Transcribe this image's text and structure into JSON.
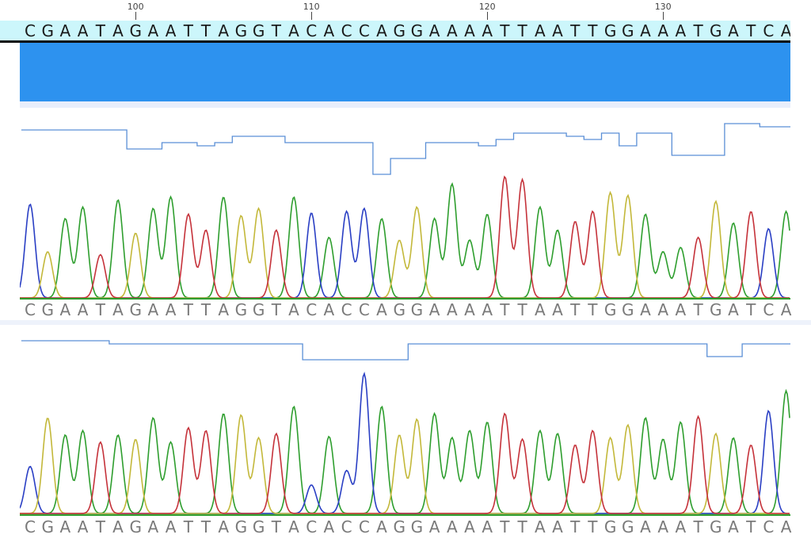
{
  "ruler": {
    "ticks": [
      {
        "label": "100",
        "index": 6
      },
      {
        "label": "110",
        "index": 16
      },
      {
        "label": "120",
        "index": 26
      },
      {
        "label": "130",
        "index": 36
      }
    ]
  },
  "consensus": {
    "sequence": "CGAATAGAATTAGGTACACCAGGAAAATTAATTGGAAATGATCA"
  },
  "reads": [
    {
      "sequence": "CGAATAGAATTAGGTACACCAGGAAAATTAATTGGAAATGATCA",
      "quality": [
        34,
        34,
        34,
        34,
        34,
        34,
        28,
        28,
        30,
        30,
        29,
        30,
        32,
        32,
        32,
        30,
        30,
        30,
        30,
        30,
        20,
        25,
        25,
        30,
        30,
        30,
        29,
        31,
        33,
        33,
        33,
        32,
        31,
        33,
        29,
        33,
        33,
        26,
        26,
        26,
        36,
        36,
        35,
        35
      ],
      "peaks": [
        0.65,
        0.32,
        0.55,
        0.63,
        0.3,
        0.68,
        0.45,
        0.62,
        0.7,
        0.58,
        0.47,
        0.7,
        0.57,
        0.62,
        0.47,
        0.7,
        0.59,
        0.42,
        0.6,
        0.62,
        0.55,
        0.4,
        0.63,
        0.55,
        0.79,
        0.4,
        0.58,
        0.84,
        0.82,
        0.63,
        0.47,
        0.53,
        0.6,
        0.73,
        0.71,
        0.58,
        0.32,
        0.35,
        0.42,
        0.67,
        0.52,
        0.6,
        0.48,
        0.6
      ]
    },
    {
      "sequence": "CGAATAGAATTAGGTACACCAGGAAAATTAATTGGAAATGATCA",
      "quality": [
        36,
        36,
        36,
        36,
        36,
        35,
        35,
        35,
        35,
        35,
        35,
        35,
        35,
        35,
        35,
        35,
        30,
        30,
        30,
        30,
        30,
        30,
        35,
        35,
        35,
        35,
        35,
        35,
        35,
        35,
        35,
        35,
        35,
        35,
        35,
        35,
        35,
        35,
        35,
        31,
        31,
        35,
        35,
        35
      ],
      "peaks": [
        0.33,
        0.67,
        0.55,
        0.58,
        0.5,
        0.55,
        0.52,
        0.67,
        0.5,
        0.6,
        0.58,
        0.7,
        0.69,
        0.53,
        0.56,
        0.75,
        0.2,
        0.54,
        0.3,
        0.98,
        0.75,
        0.55,
        0.66,
        0.7,
        0.53,
        0.58,
        0.64,
        0.7,
        0.52,
        0.58,
        0.56,
        0.48,
        0.58,
        0.53,
        0.62,
        0.67,
        0.52,
        0.64,
        0.68,
        0.56,
        0.53,
        0.48,
        0.72,
        0.86
      ]
    }
  ],
  "colors": {
    "A": "#2e9e2e",
    "C": "#2a3fc4",
    "G": "#c3b83a",
    "T": "#c5323a",
    "quality_line": "#5b8fd6",
    "identity": "#2d92ef",
    "consensus_bg": "#ccf6fb"
  }
}
